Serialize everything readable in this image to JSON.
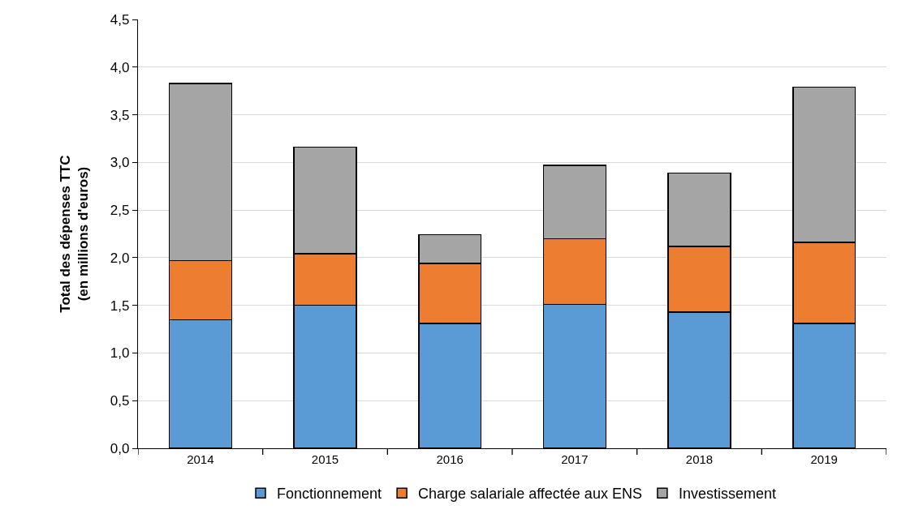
{
  "chart_data": {
    "type": "bar",
    "stacked": true,
    "ylabel": "Total des dépenses TTC\n(en millions d'euros)",
    "categories": [
      "2014",
      "2015",
      "2016",
      "2017",
      "2018",
      "2019"
    ],
    "series": [
      {
        "name": "Fonctionnement",
        "color": "#5b9bd5",
        "values": [
          1.35,
          1.5,
          1.31,
          1.51,
          1.43,
          1.31
        ]
      },
      {
        "name": "Charge salariale affectée aux ENS",
        "color": "#ed7d31",
        "values": [
          0.62,
          0.54,
          0.63,
          0.69,
          0.69,
          0.85
        ]
      },
      {
        "name": "Investissement",
        "color": "#a5a5a5",
        "values": [
          1.86,
          1.12,
          0.3,
          0.77,
          0.77,
          1.63
        ]
      }
    ],
    "ylim": [
      0,
      4.5
    ],
    "yticks": [
      {
        "value": 0,
        "label": "0,0"
      },
      {
        "value": 0.5,
        "label": "0,5"
      },
      {
        "value": 1,
        "label": "1,0"
      },
      {
        "value": 1.5,
        "label": "1,5"
      },
      {
        "value": 2,
        "label": "2,0"
      },
      {
        "value": 2.5,
        "label": "2,5"
      },
      {
        "value": 3,
        "label": "3,0"
      },
      {
        "value": 3.5,
        "label": "3,5"
      },
      {
        "value": 4,
        "label": "4,0"
      },
      {
        "value": 4.5,
        "label": "4,5"
      }
    ],
    "grid": "y",
    "legend": "bottom"
  }
}
